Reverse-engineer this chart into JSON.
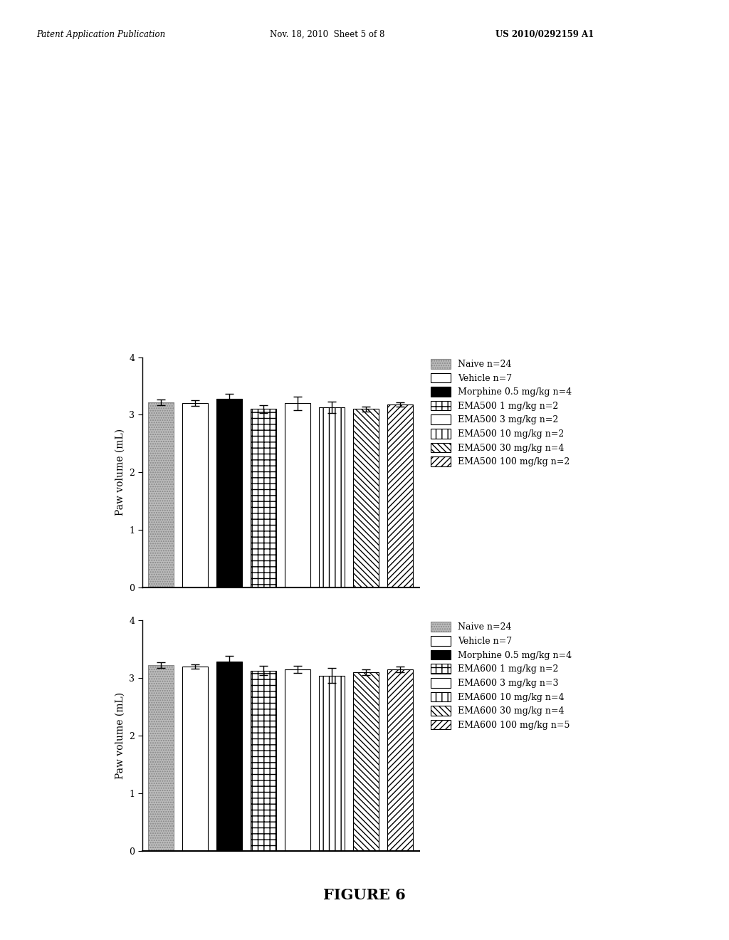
{
  "header_left": "Patent Application Publication",
  "header_mid": "Nov. 18, 2010  Sheet 5 of 8",
  "header_right": "US 2010/0292159 A1",
  "figure_label": "FIGURE 6",
  "ylabel": "Paw volume (mL)",
  "ylim": [
    0,
    4
  ],
  "yticks": [
    0,
    1,
    2,
    3,
    4
  ],
  "chart1": {
    "values": [
      3.22,
      3.2,
      3.28,
      3.1,
      3.2,
      3.13,
      3.1,
      3.18
    ],
    "errors": [
      0.05,
      0.05,
      0.09,
      0.07,
      0.12,
      0.1,
      0.04,
      0.04
    ],
    "legend_labels": [
      "Naive n=24",
      "Vehicle n=7",
      "Morphine 0.5 mg/kg n=4",
      "EMA500 1 mg/kg n=2",
      "EMA500 3 mg/kg n=2",
      "EMA500 10 mg/kg n=2",
      "EMA500 30 mg/kg n=4",
      "EMA500 100 mg/kg n=2"
    ]
  },
  "chart2": {
    "values": [
      3.22,
      3.2,
      3.28,
      3.13,
      3.15,
      3.04,
      3.1,
      3.15
    ],
    "errors": [
      0.05,
      0.04,
      0.1,
      0.08,
      0.06,
      0.13,
      0.05,
      0.05
    ],
    "legend_labels": [
      "Naive n=24",
      "Vehicle n=7",
      "Morphine 0.5 mg/kg n=4",
      "EMA600 1 mg/kg n=2",
      "EMA600 3 mg/kg n=3",
      "EMA600 10 mg/kg n=4",
      "EMA600 30 mg/kg n=4",
      "EMA600 100 mg/kg n=5"
    ]
  },
  "bar_styles": [
    {
      "fc": "#bbbbbb",
      "hatch": ".....",
      "ec": "#888888"
    },
    {
      "fc": "#ffffff",
      "hatch": "",
      "ec": "#000000"
    },
    {
      "fc": "#000000",
      "hatch": "",
      "ec": "#000000"
    },
    {
      "fc": "#ffffff",
      "hatch": "++",
      "ec": "#000000"
    },
    {
      "fc": "#ffffff",
      "hatch": "==",
      "ec": "#000000"
    },
    {
      "fc": "#ffffff",
      "hatch": "||",
      "ec": "#000000"
    },
    {
      "fc": "#ffffff",
      "hatch": "\\\\\\\\",
      "ec": "#000000"
    },
    {
      "fc": "#ffffff",
      "hatch": "////",
      "ec": "#000000"
    }
  ]
}
